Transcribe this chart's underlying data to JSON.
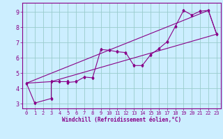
{
  "title": "",
  "xlabel": "Windchill (Refroidissement éolien,°C)",
  "ylabel": "",
  "background_color": "#cceeff",
  "line_color": "#880088",
  "grid_color": "#99cccc",
  "xlim": [
    -0.5,
    23.5
  ],
  "ylim": [
    2.7,
    9.6
  ],
  "xticks": [
    0,
    1,
    2,
    3,
    4,
    5,
    6,
    7,
    8,
    9,
    10,
    11,
    12,
    13,
    14,
    15,
    16,
    17,
    18,
    19,
    20,
    21,
    22,
    23
  ],
  "yticks": [
    3,
    4,
    5,
    6,
    7,
    8,
    9
  ],
  "series": [
    [
      0,
      4.35
    ],
    [
      1,
      3.05
    ],
    [
      3,
      3.35
    ],
    [
      3,
      4.45
    ],
    [
      4,
      4.45
    ],
    [
      5,
      4.45
    ],
    [
      5,
      4.4
    ],
    [
      6,
      4.45
    ],
    [
      7,
      4.75
    ],
    [
      8,
      4.7
    ],
    [
      9,
      6.55
    ],
    [
      10,
      6.5
    ],
    [
      11,
      6.4
    ],
    [
      12,
      6.35
    ],
    [
      13,
      5.5
    ],
    [
      14,
      5.5
    ],
    [
      15,
      6.2
    ],
    [
      16,
      6.6
    ],
    [
      17,
      7.05
    ],
    [
      18,
      8.05
    ],
    [
      19,
      9.1
    ],
    [
      20,
      8.8
    ],
    [
      21,
      9.05
    ],
    [
      22,
      9.1
    ],
    [
      23,
      7.55
    ]
  ],
  "line2": [
    [
      0,
      4.35
    ],
    [
      3,
      4.45
    ],
    [
      23,
      7.55
    ]
  ],
  "line3": [
    [
      0,
      4.35
    ],
    [
      22,
      9.1
    ],
    [
      23,
      7.55
    ]
  ]
}
